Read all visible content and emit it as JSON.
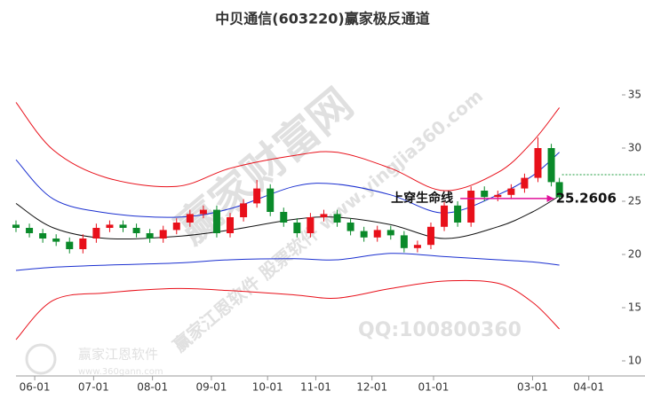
{
  "chart_data": {
    "type": "candlestick",
    "title": "中贝通信(603220)赢家极反通道",
    "xlim": [
      0,
      235
    ],
    "xticks": [
      {
        "value": 7,
        "label": "06-01"
      },
      {
        "value": 29,
        "label": "07-01"
      },
      {
        "value": 51,
        "label": "08-01"
      },
      {
        "value": 73,
        "label": "09-01"
      },
      {
        "value": 94,
        "label": "10-01"
      },
      {
        "value": 112,
        "label": "11-01"
      },
      {
        "value": 133,
        "label": "12-01"
      },
      {
        "value": 156,
        "label": "01-01"
      },
      {
        "value": 193,
        "label": "03-01"
      },
      {
        "value": 214,
        "label": "04-01"
      }
    ],
    "ylim": [
      10,
      39
    ],
    "yticks": [
      10,
      15,
      20,
      25,
      30,
      35
    ],
    "up_color": "#e8101a",
    "down_color": "#0a8a2a",
    "candles": {
      "x": [
        0,
        5,
        10,
        15,
        20,
        25,
        30,
        35,
        40,
        45,
        50,
        55,
        60,
        65,
        70,
        75,
        80,
        85,
        90,
        95,
        100,
        105,
        110,
        115,
        120,
        125,
        130,
        135,
        140,
        145,
        150,
        155,
        160,
        165,
        170,
        175,
        180,
        185,
        190,
        195,
        200,
        203
      ],
      "open": [
        22.8,
        22.5,
        22.0,
        21.5,
        21.2,
        20.5,
        21.5,
        22.5,
        22.8,
        22.5,
        22.0,
        21.5,
        22.3,
        23.0,
        23.8,
        24.2,
        22.0,
        23.5,
        24.8,
        26.2,
        24.0,
        23.0,
        22.0,
        23.5,
        23.8,
        23.0,
        22.2,
        21.6,
        22.3,
        21.8,
        20.6,
        20.9,
        22.6,
        24.6,
        23.0,
        26.0,
        25.4,
        25.6,
        26.2,
        27.2,
        30.0,
        26.8
      ],
      "close": [
        22.5,
        22.0,
        21.5,
        21.2,
        20.5,
        21.5,
        22.5,
        22.8,
        22.5,
        22.0,
        21.5,
        22.3,
        23.0,
        23.8,
        24.2,
        22.0,
        23.5,
        24.8,
        26.2,
        24.0,
        23.0,
        22.0,
        23.5,
        23.8,
        23.0,
        22.2,
        21.6,
        22.3,
        21.8,
        20.6,
        20.9,
        22.6,
        24.6,
        23.0,
        26.0,
        25.4,
        25.6,
        26.2,
        27.2,
        30.0,
        26.8,
        25.4
      ],
      "high": [
        23.2,
        22.9,
        22.4,
        21.9,
        21.6,
        21.9,
        22.9,
        23.2,
        23.2,
        22.9,
        22.4,
        22.7,
        23.4,
        24.2,
        24.6,
        24.6,
        23.9,
        25.2,
        27.0,
        26.6,
        24.4,
        23.4,
        23.9,
        24.2,
        24.2,
        23.4,
        22.6,
        22.7,
        22.7,
        22.2,
        21.3,
        23.0,
        25.0,
        25.0,
        26.4,
        26.4,
        26.0,
        26.6,
        27.6,
        31.0,
        30.4,
        27.2
      ],
      "low": [
        22.1,
        21.6,
        21.1,
        20.8,
        20.1,
        20.1,
        21.1,
        22.1,
        22.1,
        21.6,
        21.1,
        21.1,
        21.9,
        22.6,
        23.4,
        21.6,
        21.6,
        23.1,
        24.4,
        23.6,
        22.6,
        21.6,
        21.6,
        23.1,
        22.6,
        21.8,
        21.2,
        21.2,
        21.4,
        20.2,
        20.2,
        20.5,
        22.2,
        22.6,
        22.6,
        25.0,
        25.0,
        25.2,
        25.8,
        26.8,
        26.4,
        25.0
      ]
    },
    "x": [
      0,
      14,
      34,
      60,
      80,
      104,
      120,
      140,
      160,
      180,
      193,
      203
    ],
    "series": [
      {
        "color": "#e8101a",
        "values": [
          34.3,
          29.8,
          27.2,
          26.4,
          28.1,
          29.3,
          29.6,
          28.1,
          26.0,
          27.7,
          30.6,
          33.8
        ]
      },
      {
        "color": "#1a2fd0",
        "values": [
          28.9,
          25.2,
          23.9,
          23.5,
          24.3,
          26.4,
          26.6,
          25.6,
          23.9,
          25.6,
          27.4,
          29.6
        ]
      },
      {
        "color": "#111111",
        "values": [
          24.8,
          22.5,
          21.5,
          21.7,
          22.3,
          23.3,
          23.5,
          22.8,
          21.5,
          22.6,
          24.0,
          25.5
        ]
      },
      {
        "color": "#1a2fd0",
        "values": [
          18.5,
          18.8,
          19.0,
          19.2,
          19.5,
          19.6,
          19.5,
          20.1,
          19.8,
          19.5,
          19.3,
          19.0
        ]
      },
      {
        "color": "#e8101a",
        "values": [
          12.0,
          15.7,
          16.4,
          16.8,
          16.6,
          16.2,
          15.9,
          16.8,
          17.5,
          17.3,
          15.5,
          13.0
        ]
      }
    ],
    "annotation": {
      "text": "上穿生命线",
      "value_label": "25.2606",
      "value": 25.2606,
      "x_start": 166,
      "x_end": 201
    },
    "price_line": {
      "value": 27.5,
      "x_start": 204,
      "color": "#1a9a3a"
    },
    "watermarks": [
      "赢家财富网",
      "赢家江恩软件 股票软件 www.yingjia360.com",
      "QQ:100800360",
      "赢家江恩软件",
      "www.360gann.com"
    ]
  }
}
